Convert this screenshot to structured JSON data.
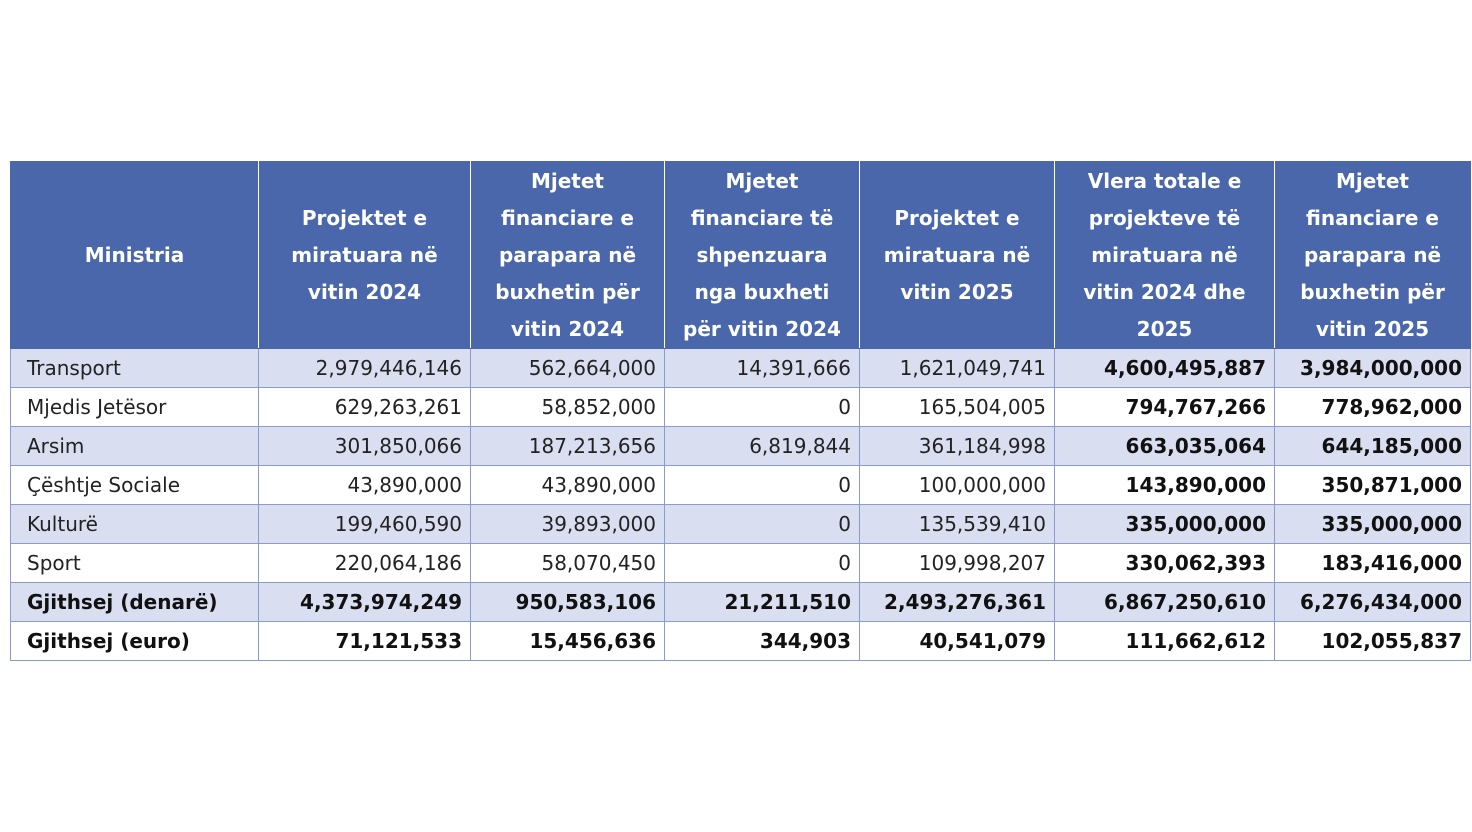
{
  "table": {
    "headers": [
      "Ministria",
      "Projektet e miratuara në vitin 2024",
      "Mjetet financiare e parapara në buxhetin për vitin 2024",
      "Mjetet financiare të shpenzuara nga buxheti për vitin 2024",
      "Projektet e miratuara në vitin 2025",
      "Vlera totale e projekteve të miratuara në vitin 2024 dhe 2025",
      "Mjetet financiare e parapara në buxhetin për vitin 2025"
    ],
    "rows": [
      [
        "Transport",
        "2,979,446,146",
        "562,664,000",
        "14,391,666",
        "1,621,049,741",
        "4,600,495,887",
        "3,984,000,000"
      ],
      [
        "Mjedis Jetësor",
        "629,263,261",
        "58,852,000",
        "0",
        "165,504,005",
        "794,767,266",
        "778,962,000"
      ],
      [
        "Arsim",
        "301,850,066",
        "187,213,656",
        "6,819,844",
        "361,184,998",
        "663,035,064",
        "644,185,000"
      ],
      [
        "Çështje Sociale",
        "43,890,000",
        "43,890,000",
        "0",
        "100,000,000",
        "143,890,000",
        "350,871,000"
      ],
      [
        "Kulturë",
        "199,460,590",
        "39,893,000",
        "0",
        "135,539,410",
        "335,000,000",
        "335,000,000"
      ],
      [
        "Sport",
        "220,064,186",
        "58,070,450",
        "0",
        "109,998,207",
        "330,062,393",
        "183,416,000"
      ],
      [
        "Gjithsej (denarë)",
        "4,373,974,249",
        "950,583,106",
        "21,211,510",
        "2,493,276,361",
        "6,867,250,610",
        "6,276,434,000"
      ],
      [
        "Gjithsej (euro)",
        "71,121,533",
        "15,456,636",
        "344,903",
        "40,541,079",
        "111,662,612",
        "102,055,837"
      ]
    ]
  },
  "colors": {
    "header_bg": "#4a67ac",
    "header_text": "#ffffff",
    "row_shade": "#d9dff1",
    "border": "#8a9ccf"
  }
}
